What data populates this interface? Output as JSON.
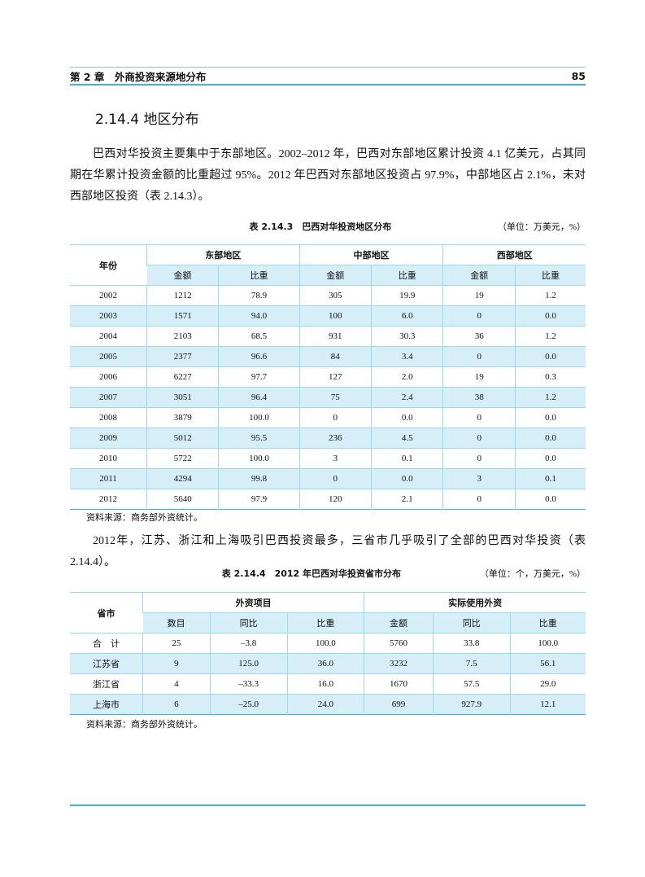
{
  "header": {
    "chapter": "第 2 章　外商投资来源地分布",
    "page": "85"
  },
  "section": {
    "title": "2.14.4  地区分布"
  },
  "paragraphs": [
    "巴西对华投资主要集中于东部地区。2002–2012 年，巴西对东部地区累计投资 4.1 亿美元，占其同期在华累计投资金额的比重超过 95%。2012 年巴西对东部地区投资占 97.9%，中部地区占 2.1%，未对西部地区投资（表 2.14.3）。",
    "2012年，江苏、浙江和上海吸引巴西投资最多，三省市几乎吸引了全部的巴西对华投资（表2.14.4）。"
  ],
  "tables": [
    {
      "caption": "表 2.14.3　巴西对华投资地区分布",
      "unit": "（单位：万美元，%）",
      "row_header": "年份",
      "groups": [
        "东部地区",
        "中部地区",
        "西部地区"
      ],
      "subheaders": [
        "金额",
        "比重",
        "金额",
        "比重",
        "金额",
        "比重"
      ],
      "rows": [
        [
          "2002",
          "1212",
          "78.9",
          "305",
          "19.9",
          "19",
          "1.2"
        ],
        [
          "2003",
          "1571",
          "94.0",
          "100",
          "6.0",
          "0",
          "0.0"
        ],
        [
          "2004",
          "2103",
          "68.5",
          "931",
          "30.3",
          "36",
          "1.2"
        ],
        [
          "2005",
          "2377",
          "96.6",
          "84",
          "3.4",
          "0",
          "0.0"
        ],
        [
          "2006",
          "6227",
          "97.7",
          "127",
          "2.0",
          "19",
          "0.3"
        ],
        [
          "2007",
          "3051",
          "96.4",
          "75",
          "2.4",
          "38",
          "1.2"
        ],
        [
          "2008",
          "3879",
          "100.0",
          "0",
          "0.0",
          "0",
          "0.0"
        ],
        [
          "2009",
          "5012",
          "95.5",
          "236",
          "4.5",
          "0",
          "0.0"
        ],
        [
          "2010",
          "5722",
          "100.0",
          "3",
          "0.1",
          "0",
          "0.0"
        ],
        [
          "2011",
          "4294",
          "99.8",
          "0",
          "0.0",
          "3",
          "0.1"
        ],
        [
          "2012",
          "5640",
          "97.9",
          "120",
          "2.1",
          "0",
          "0.0"
        ]
      ],
      "source": "资料来源：商务部外资统计。"
    },
    {
      "caption": "表 2.14.4　2012 年巴西对华投资省市分布",
      "unit": "（单位：个，万美元，%）",
      "row_header": "省市",
      "groups": [
        "外资项目",
        "实际使用外资"
      ],
      "subheaders": [
        "数目",
        "同比",
        "比重",
        "金额",
        "同比",
        "比重"
      ],
      "rows": [
        [
          "合　计",
          "25",
          "–3.8",
          "100.0",
          "5760",
          "33.8",
          "100.0"
        ],
        [
          "江苏省",
          "9",
          "125.0",
          "36.0",
          "3232",
          "7.5",
          "56.1"
        ],
        [
          "浙江省",
          "4",
          "–33.3",
          "16.0",
          "1670",
          "57.5",
          "29.0"
        ],
        [
          "上海市",
          "6",
          "–25.0",
          "24.0",
          "699",
          "927.9",
          "12.1"
        ]
      ],
      "source": "资料来源：商务部外资统计。"
    }
  ]
}
